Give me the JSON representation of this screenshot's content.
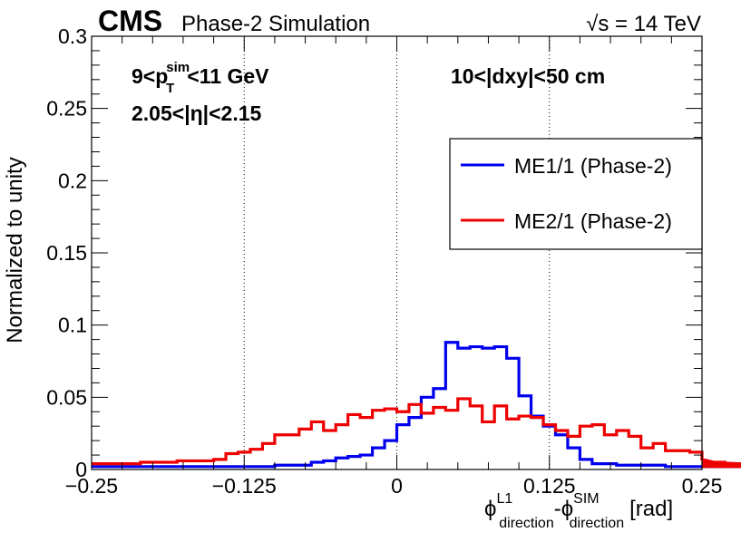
{
  "header": {
    "experiment": "CMS",
    "subtitle": "Phase-2 Simulation",
    "energy": "√s = 14 TeV"
  },
  "annotations": {
    "pt_prefix": "9<p",
    "pt_sup": "sim",
    "pt_sub": "T",
    "pt_suffix": "<11 GeV",
    "eta": "2.05<|η|<2.15",
    "dxy": "10<|dxy|<50 cm"
  },
  "axes": {
    "ylabel": "Normalized to unity",
    "xlabel_phi1": "ϕ",
    "xlabel_sup1": "L1",
    "xlabel_sub1": "direction",
    "xlabel_mid": "-ϕ",
    "xlabel_sup2": "SIM",
    "xlabel_sub2": "direction",
    "xlabel_unit": "[rad]"
  },
  "chart_data": {
    "type": "line",
    "step": true,
    "xlim": [
      -0.25,
      0.25
    ],
    "ylim": [
      0,
      0.3
    ],
    "bin_width": 0.01,
    "x_ticks": [
      -0.25,
      -0.125,
      0,
      0.125,
      0.25
    ],
    "x_tick_labels": [
      "−0.25",
      "−0.125",
      "0",
      "0.125",
      "0.25"
    ],
    "y_ticks": [
      0,
      0.05,
      0.1,
      0.15,
      0.2,
      0.25,
      0.3
    ],
    "y_tick_labels": [
      "0",
      "0.05",
      "0.1",
      "0.15",
      "0.2",
      "0.25",
      "0.3"
    ],
    "vlines": [
      -0.125,
      0,
      0.125
    ],
    "legend_position": "top-right",
    "series": [
      {
        "name": "ME1/1 (Phase-2)",
        "color": "#0000ee",
        "values": [
          0.002,
          0.002,
          0.002,
          0.002,
          0.002,
          0.002,
          0.002,
          0.002,
          0.002,
          0.002,
          0.002,
          0.002,
          0.002,
          0.002,
          0.002,
          0.003,
          0.003,
          0.003,
          0.005,
          0.006,
          0.008,
          0.009,
          0.01,
          0.015,
          0.02,
          0.031,
          0.036,
          0.05,
          0.056,
          0.088,
          0.084,
          0.085,
          0.084,
          0.085,
          0.077,
          0.051,
          0.037,
          0.03,
          0.024,
          0.015,
          0.007,
          0.004,
          0.004,
          0.003,
          0.003,
          0.003,
          0.003,
          0.002,
          0.002,
          0.002,
          0.002,
          0.002,
          0.002,
          0.002,
          0.002,
          0.002,
          0.002,
          0.002,
          0.002,
          0.002,
          0.002,
          0.002,
          0.002,
          0.002,
          0.002
        ]
      },
      {
        "name": "ME2/1 (Phase-2)",
        "color": "#ee0000",
        "values": [
          0.004,
          0.004,
          0.004,
          0.004,
          0.005,
          0.005,
          0.005,
          0.006,
          0.006,
          0.006,
          0.007,
          0.011,
          0.012,
          0.014,
          0.018,
          0.024,
          0.024,
          0.028,
          0.033,
          0.027,
          0.031,
          0.038,
          0.036,
          0.041,
          0.042,
          0.04,
          0.045,
          0.039,
          0.043,
          0.041,
          0.049,
          0.044,
          0.033,
          0.044,
          0.035,
          0.037,
          0.036,
          0.031,
          0.027,
          0.023,
          0.03,
          0.031,
          0.024,
          0.027,
          0.023,
          0.015,
          0.018,
          0.013,
          0.013,
          0.012,
          0.007,
          0.005,
          0.005,
          0.004,
          0.004,
          0.004,
          0.004,
          0.004,
          0.003,
          0.003,
          0.003,
          0.003,
          0.003,
          0.003,
          0.002
        ]
      }
    ]
  }
}
